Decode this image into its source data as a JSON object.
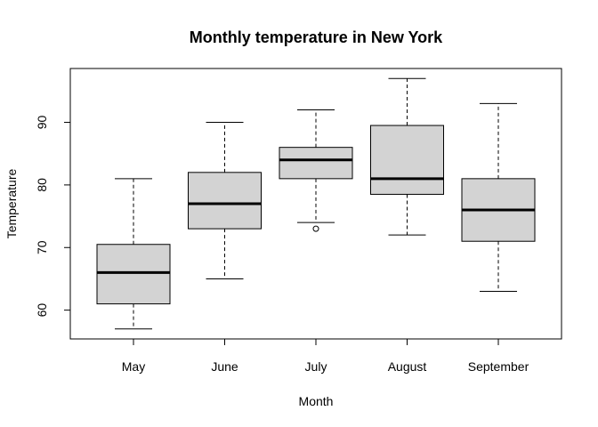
{
  "chart_data": {
    "type": "boxplot",
    "title": "Monthly temperature in New York",
    "xlabel": "Month",
    "ylabel": "Temperature",
    "categories": [
      "May",
      "June",
      "July",
      "August",
      "September"
    ],
    "boxes": [
      {
        "label": "May",
        "whisker_low": 57,
        "q1": 61,
        "median": 66,
        "q3": 70.5,
        "whisker_high": 81,
        "outliers": []
      },
      {
        "label": "June",
        "whisker_low": 65,
        "q1": 73,
        "median": 77,
        "q3": 82,
        "whisker_high": 90,
        "outliers": []
      },
      {
        "label": "July",
        "whisker_low": 74,
        "q1": 81,
        "median": 84,
        "q3": 86,
        "whisker_high": 92,
        "outliers": [
          73
        ]
      },
      {
        "label": "August",
        "whisker_low": 72,
        "q1": 78.5,
        "median": 81,
        "q3": 89.5,
        "whisker_high": 97,
        "outliers": []
      },
      {
        "label": "September",
        "whisker_low": 63,
        "q1": 71,
        "median": 76,
        "q3": 81,
        "whisker_high": 93,
        "outliers": []
      }
    ],
    "y_ticks": [
      60,
      70,
      80,
      90
    ],
    "ylim": [
      55.4,
      98.6
    ],
    "box_fill": "#d3d3d3",
    "grid": false
  }
}
